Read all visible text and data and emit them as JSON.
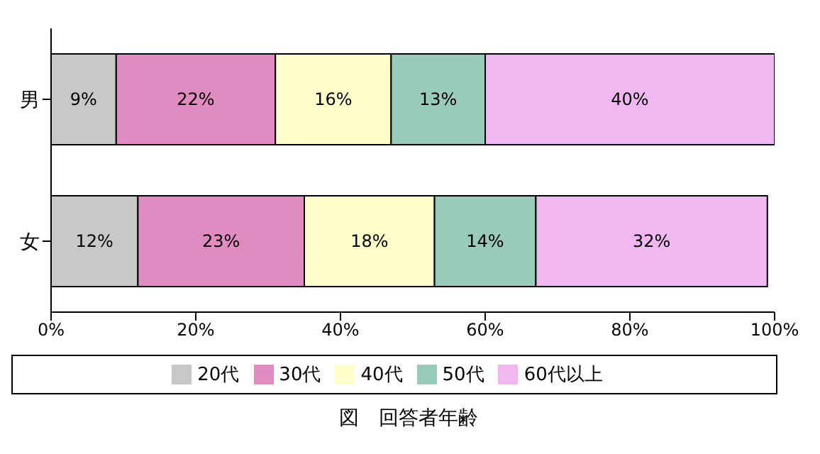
{
  "chart_data": {
    "type": "bar",
    "orientation": "horizontal",
    "stacked": true,
    "title": "図　回答者年齢",
    "categories": [
      "男",
      "女"
    ],
    "series": [
      {
        "name": "20代",
        "color": "#c8c8c8",
        "values": [
          9,
          12
        ],
        "value_labels": [
          "9%",
          "12%"
        ]
      },
      {
        "name": "30代",
        "color": "#e08cc0",
        "values": [
          22,
          23
        ],
        "value_labels": [
          "22%",
          "23%"
        ]
      },
      {
        "name": "40代",
        "color": "#ffffcc",
        "values": [
          16,
          18
        ],
        "value_labels": [
          "16%",
          "18%"
        ]
      },
      {
        "name": "50代",
        "color": "#99ccb8",
        "values": [
          13,
          14
        ],
        "value_labels": [
          "13%",
          "14%"
        ]
      },
      {
        "name": "60代以上",
        "color": "#f0b8f0",
        "values": [
          40,
          32
        ],
        "value_labels": [
          "40%",
          "32%"
        ]
      }
    ],
    "xlim": [
      0,
      100
    ],
    "xticks": [
      {
        "value": 0,
        "label": "0%"
      },
      {
        "value": 20,
        "label": "20%"
      },
      {
        "value": 40,
        "label": "40%"
      },
      {
        "value": 60,
        "label": "60%"
      },
      {
        "value": 80,
        "label": "80%"
      },
      {
        "value": 100,
        "label": "100%"
      }
    ],
    "legend": "bottom"
  }
}
